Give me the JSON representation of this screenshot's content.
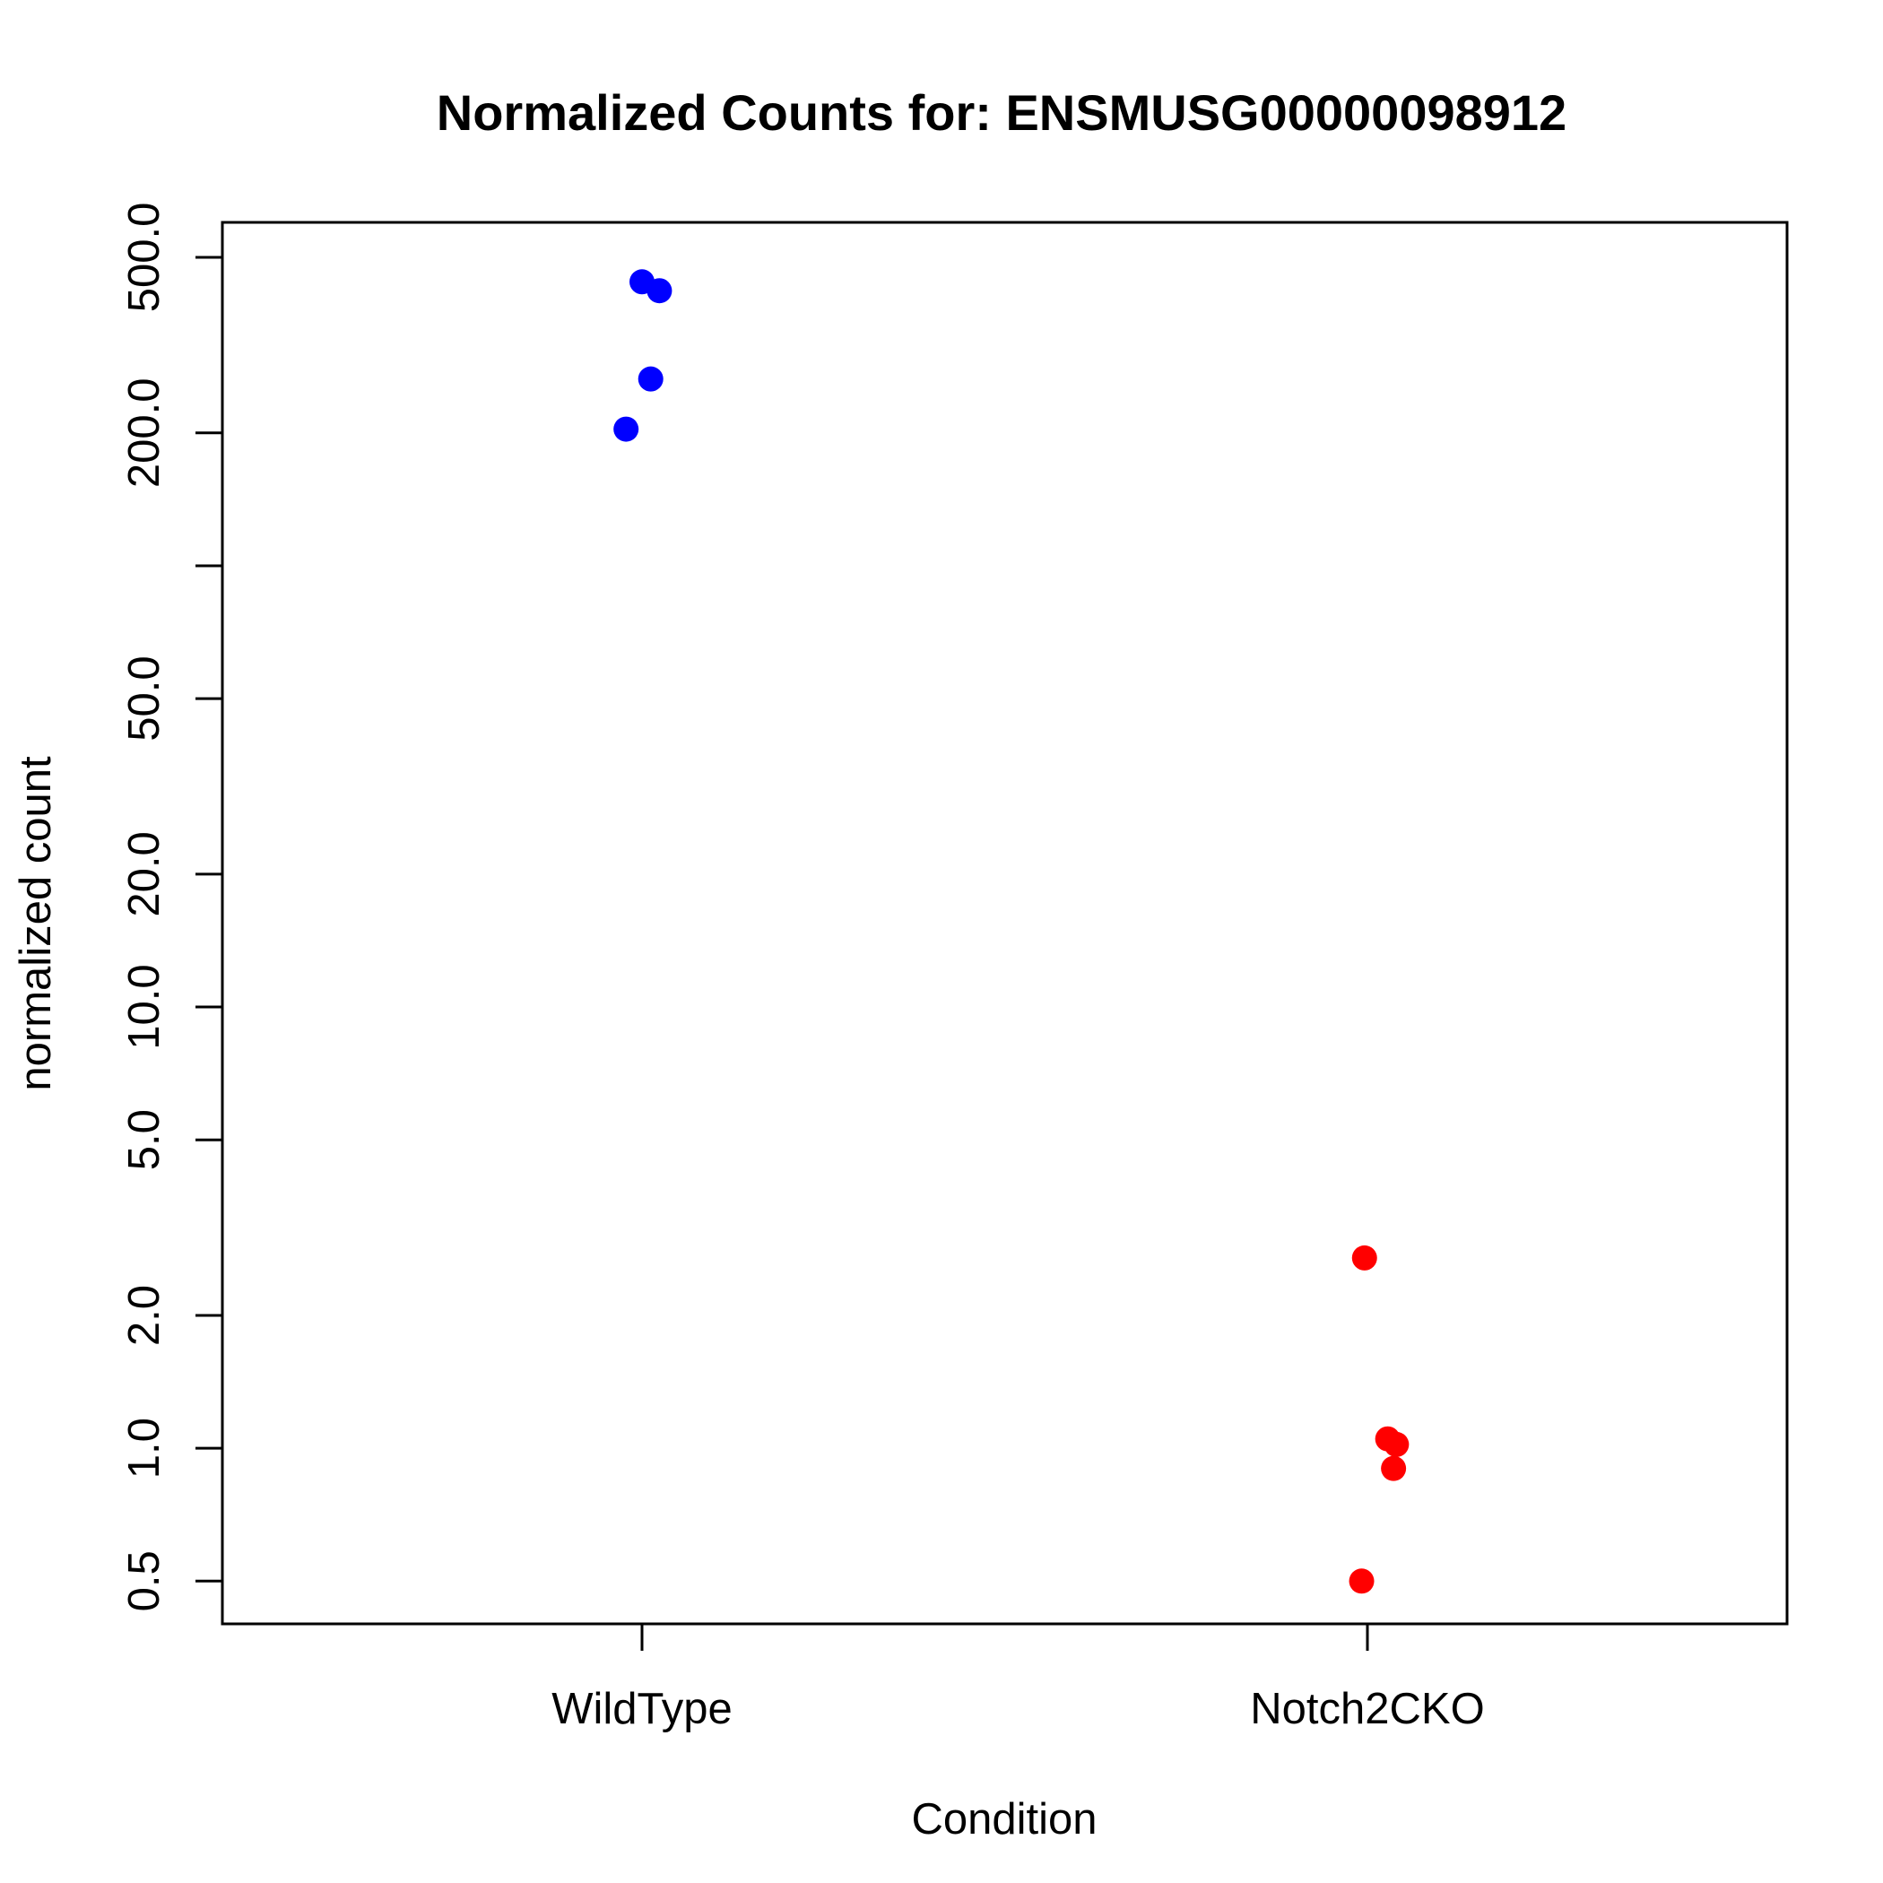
{
  "chart_data": {
    "type": "scatter",
    "title": "Normalized Counts for: ENSMUSG00000098912",
    "xlabel": "Condition",
    "ylabel": "normalized count",
    "y_scale": "log",
    "ylim": [
      0.4,
      600
    ],
    "categories": [
      "WildType",
      "Notch2CKO"
    ],
    "y_ticks": [
      {
        "value": 0.5,
        "label": "0.5"
      },
      {
        "value": 1,
        "label": "1.0"
      },
      {
        "value": 2,
        "label": "2.0"
      },
      {
        "value": 5,
        "label": "5.0"
      },
      {
        "value": 10,
        "label": "10.0"
      },
      {
        "value": 20,
        "label": "20.0"
      },
      {
        "value": 50,
        "label": "50.0"
      },
      {
        "value": 100,
        "label": ""
      },
      {
        "value": 200,
        "label": "200.0"
      },
      {
        "value": 500,
        "label": "500.0"
      }
    ],
    "grid": false,
    "series": [
      {
        "category": "WildType",
        "color": "#0000ff",
        "points": [
          {
            "jitter": 0.0,
            "y": 440
          },
          {
            "jitter": 0.024,
            "y": 420
          },
          {
            "jitter": 0.012,
            "y": 265
          },
          {
            "jitter": -0.022,
            "y": 204
          }
        ]
      },
      {
        "category": "Notch2CKO",
        "color": "#ff0000",
        "points": [
          {
            "jitter": -0.004,
            "y": 2.7
          },
          {
            "jitter": 0.028,
            "y": 1.05
          },
          {
            "jitter": 0.04,
            "y": 1.02
          },
          {
            "jitter": 0.036,
            "y": 0.9
          },
          {
            "jitter": -0.008,
            "y": 0.5
          }
        ]
      }
    ]
  }
}
